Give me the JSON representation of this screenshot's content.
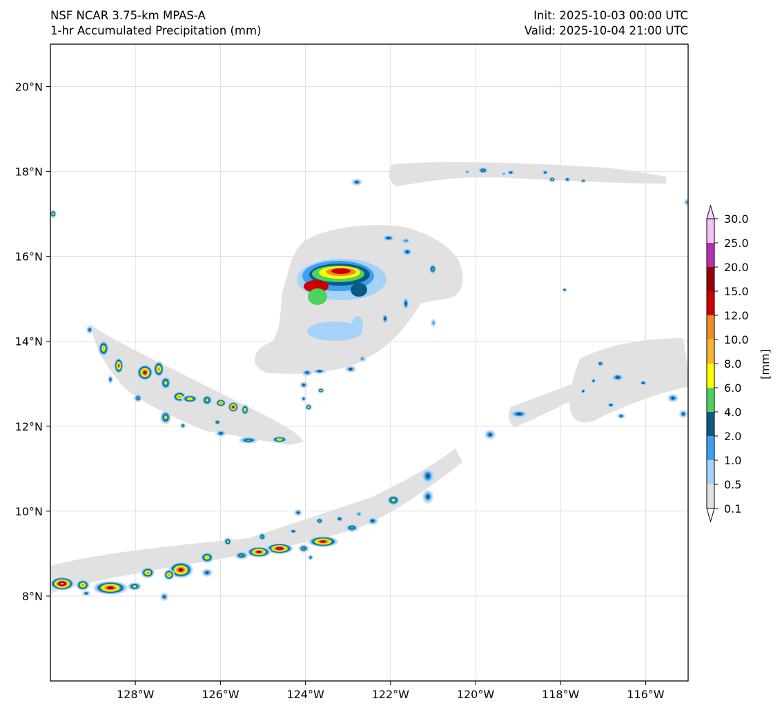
{
  "header": {
    "title_left_1": "NSF NCAR 3.75-km MPAS-A",
    "title_left_2": "1-hr Accumulated Precipitation (mm)",
    "title_right_1": "Init: 2025-10-03 00:00 UTC",
    "title_right_2": "Valid: 2025-10-04 21:00 UTC"
  },
  "map": {
    "lon_range": [
      -130.0,
      -115.0
    ],
    "lat_range": [
      6.0,
      21.0
    ],
    "lon_ticks": [
      -128,
      -126,
      -124,
      -122,
      -120,
      -118,
      -116
    ],
    "lon_tick_labels": [
      "128°W",
      "126°W",
      "124°W",
      "122°W",
      "120°W",
      "118°W",
      "116°W"
    ],
    "lat_ticks": [
      8,
      10,
      12,
      14,
      16,
      18,
      20
    ],
    "lat_tick_labels": [
      "8°N",
      "10°N",
      "12°N",
      "14°N",
      "16°N",
      "18°N",
      "20°N"
    ],
    "grid": true
  },
  "colorbar": {
    "label": "[mm]",
    "levels": [
      "0.1",
      "0.5",
      "1.0",
      "2.0",
      "4.0",
      "6.0",
      "8.0",
      "10.0",
      "12.0",
      "15.0",
      "20.0",
      "25.0",
      "30.0"
    ],
    "colors": [
      "#e1e1e1",
      "#a6d2fa",
      "#3c9ff0",
      "#0b5a86",
      "#4cd35b",
      "#ffff00",
      "#f8b530",
      "#f08c2a",
      "#cc0000",
      "#990000",
      "#b431b4",
      "#f7c1f7"
    ],
    "extend_low_color": "#ffffff",
    "extend_high_color": "#ffd3ff"
  },
  "colors": {
    "axes": "#000000",
    "grid": "#d9d9d9",
    "background": "#ffffff"
  }
}
